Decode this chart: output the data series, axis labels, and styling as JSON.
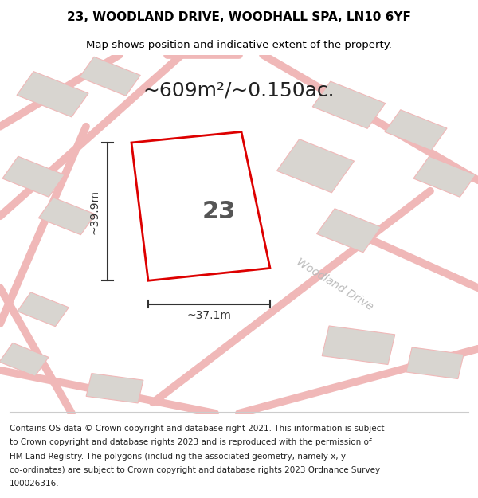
{
  "title_line1": "23, WOODLAND DRIVE, WOODHALL SPA, LN10 6YF",
  "title_line2": "Map shows position and indicative extent of the property.",
  "area_text": "~609m²/~0.150ac.",
  "number_label": "23",
  "width_label": "~37.1m",
  "height_label": "~39.9m",
  "road_label": "Woodland Drive",
  "footer_lines": [
    "Contains OS data © Crown copyright and database right 2021. This information is subject",
    "to Crown copyright and database rights 2023 and is reproduced with the permission of",
    "HM Land Registry. The polygons (including the associated geometry, namely x, y",
    "co-ordinates) are subject to Crown copyright and database rights 2023 Ordnance Survey",
    "100026316."
  ],
  "bg_color": "#f2f0ed",
  "building_fill": "#d8d5d0",
  "building_edge": "#f0b8b8",
  "road_color": "#f0b8b8",
  "plot_fill": "#ffffff",
  "plot_edge": "#dd0000",
  "title_fontsize": 11,
  "subtitle_fontsize": 9.5,
  "area_fontsize": 18,
  "label_fontsize": 10,
  "footer_fontsize": 7.5,
  "road_label_fontsize": 10,
  "dim_line_color": "#333333",
  "number_color": "#555555",
  "road_label_color": "#bbbbbb"
}
